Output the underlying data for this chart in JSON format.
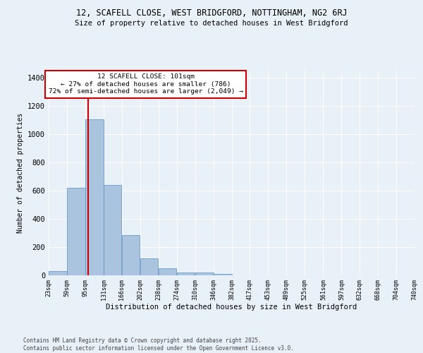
{
  "title1": "12, SCAFELL CLOSE, WEST BRIDGFORD, NOTTINGHAM, NG2 6RJ",
  "title2": "Size of property relative to detached houses in West Bridgford",
  "xlabel": "Distribution of detached houses by size in West Bridgford",
  "ylabel": "Number of detached properties",
  "footnote1": "Contains HM Land Registry data © Crown copyright and database right 2025.",
  "footnote2": "Contains public sector information licensed under the Open Government Licence v3.0.",
  "annotation_line1": "12 SCAFELL CLOSE: 101sqm",
  "annotation_line2": "← 27% of detached houses are smaller (786)",
  "annotation_line3": "72% of semi-detached houses are larger (2,049) →",
  "property_size": 101,
  "bar_left_edges": [
    23,
    59,
    95,
    131,
    166,
    202,
    238,
    274,
    310,
    346,
    382,
    417,
    453,
    489,
    525,
    561,
    597,
    632,
    668,
    704
  ],
  "bar_widths": [
    36,
    36,
    36,
    35,
    36,
    36,
    36,
    36,
    36,
    36,
    35,
    36,
    36,
    36,
    36,
    36,
    35,
    36,
    36,
    36
  ],
  "bar_heights": [
    30,
    620,
    1105,
    640,
    285,
    120,
    48,
    22,
    20,
    12,
    0,
    0,
    0,
    0,
    0,
    0,
    0,
    0,
    0,
    0
  ],
  "bar_color": "#aac4e0",
  "bar_edgecolor": "#5a8fc0",
  "vline_x": 101,
  "vline_color": "#cc0000",
  "ylim": [
    0,
    1450
  ],
  "yticks": [
    0,
    200,
    400,
    600,
    800,
    1000,
    1200,
    1400
  ],
  "bg_color": "#e8f0f8",
  "grid_color": "#ffffff",
  "annotation_box_color": "#ffffff",
  "annotation_box_edgecolor": "#cc0000",
  "tick_labels": [
    "23sqm",
    "59sqm",
    "95sqm",
    "131sqm",
    "166sqm",
    "202sqm",
    "238sqm",
    "274sqm",
    "310sqm",
    "346sqm",
    "382sqm",
    "417sqm",
    "453sqm",
    "489sqm",
    "525sqm",
    "561sqm",
    "597sqm",
    "632sqm",
    "668sqm",
    "704sqm",
    "740sqm"
  ],
  "xlim": [
    23,
    740
  ]
}
